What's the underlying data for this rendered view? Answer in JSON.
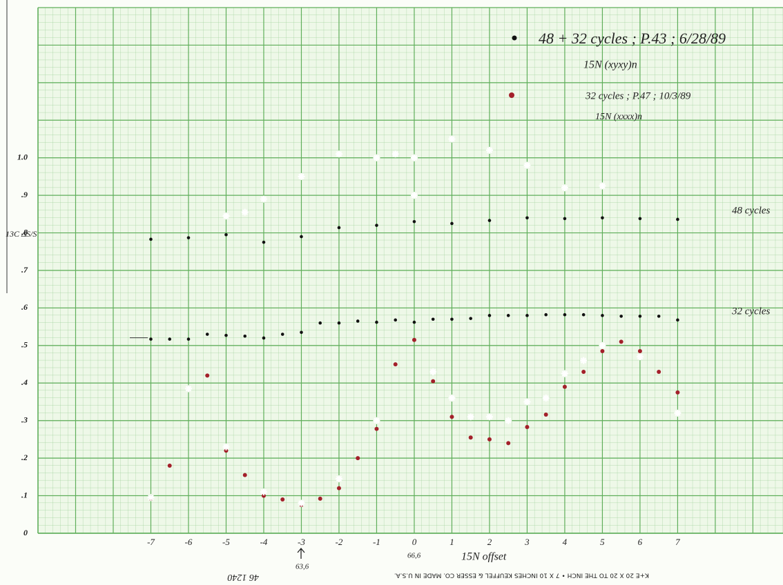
{
  "chart_data": {
    "type": "scatter",
    "y_label": "13C ΔS/S",
    "x_label": "15N offset",
    "annotations": [
      "48 + 32 cycles ; P.43 ; 6/28/89",
      "15N (xyxy)n",
      "32 cycles ; P.47 ; 10/3/89",
      "15N (xxxx)n",
      "66,6",
      "63,6",
      "46 1240",
      "K+E 20 X 20 TO THE INCH • 7 X 10 INCHES   KEUFFEL & ESSER CO.   MADE IN U.S.A."
    ],
    "xlim": [
      -10,
      9.8
    ],
    "ylim": [
      0,
      1.4
    ],
    "xticks": [
      -7,
      -6,
      -5,
      -4,
      -3,
      -2,
      -1,
      0,
      1,
      2,
      3,
      4,
      5,
      6,
      7
    ],
    "yticks": [
      0,
      {
        "value": 0.1,
        "label": ".1"
      },
      {
        "value": 0.2,
        "label": ".2"
      },
      {
        "value": 0.3,
        "label": ".3"
      },
      {
        "value": 0.4,
        "label": ".4"
      },
      {
        "value": 0.5,
        "label": ".5"
      },
      {
        "value": 0.6,
        "label": ".6"
      },
      {
        "value": 0.7,
        "label": ".7"
      },
      {
        "value": 0.8,
        "label": ".8"
      },
      {
        "value": 0.9,
        "label": ".9"
      },
      {
        "value": 1.0,
        "label": "1.0"
      }
    ],
    "grid": true,
    "series": [
      {
        "name": "48 cycles",
        "color": "#111111",
        "marker": "dot",
        "x": [
          -7,
          -6,
          -5,
          -4,
          -3,
          -2,
          -1,
          0,
          1,
          2,
          3,
          4,
          5,
          6,
          7
        ],
        "values": [
          0.783,
          0.787,
          0.795,
          0.775,
          0.79,
          0.814,
          0.82,
          0.83,
          0.825,
          0.833,
          0.84,
          0.838,
          0.84,
          0.838,
          0.836
        ]
      },
      {
        "name": "32 cycles",
        "color": "#111111",
        "marker": "dot",
        "x": [
          -7,
          -6.5,
          -6,
          -5.5,
          -5,
          -4.5,
          -4,
          -3.5,
          -3,
          -2.5,
          -2,
          -1.5,
          -1,
          -0.5,
          0,
          0.5,
          1,
          1.5,
          2,
          2.5,
          3,
          3.5,
          4,
          4.5,
          5,
          5.5,
          6,
          6.5,
          7
        ],
        "values": [
          0.517,
          0.517,
          0.517,
          0.53,
          0.527,
          0.525,
          0.52,
          0.53,
          0.535,
          0.56,
          0.56,
          0.565,
          0.562,
          0.568,
          0.562,
          0.57,
          0.57,
          0.572,
          0.58,
          0.58,
          0.58,
          0.582,
          0.582,
          0.582,
          0.58,
          0.578,
          0.578,
          0.578,
          0.568
        ]
      },
      {
        "color": "#a3202a",
        "marker": "dot",
        "x": [
          -7,
          -6.5,
          -6,
          -5.5,
          -5,
          -4.5,
          -4,
          -3.5,
          -3,
          -2.5,
          -2,
          -1.5,
          -1,
          -0.5,
          0,
          0.5,
          1,
          1.5,
          2,
          2.5,
          3,
          3.5,
          4,
          4.5,
          5,
          5.5,
          6,
          6.5,
          7
        ],
        "values": [
          0.092,
          0.18,
          0.385,
          0.42,
          0.22,
          0.155,
          0.1,
          0.09,
          0.075,
          0.092,
          0.12,
          0.2,
          0.278,
          0.45,
          0.515,
          0.405,
          0.31,
          0.255,
          0.25,
          0.24,
          0.283,
          0.316,
          0.39,
          0.43,
          0.485,
          0.51,
          0.485,
          0.43,
          0.375
        ]
      },
      {
        "color": "#ffffff",
        "marker": "cross",
        "x": [
          -5,
          -4.5,
          -4,
          -3,
          -2,
          -1,
          -0.5,
          0,
          0,
          1,
          2,
          3,
          4,
          5,
          -7,
          -6,
          -5,
          -4,
          -3,
          -2,
          -1,
          0.5,
          1,
          1.5,
          2,
          2.5,
          3,
          3.5,
          4,
          4.5,
          5,
          6,
          7
        ],
        "values": [
          0.845,
          0.855,
          0.89,
          0.95,
          1.01,
          1.0,
          1.01,
          1.0,
          0.9,
          1.05,
          1.02,
          0.98,
          0.92,
          0.925,
          0.095,
          0.385,
          0.23,
          0.11,
          0.08,
          0.145,
          0.3,
          0.43,
          0.36,
          0.31,
          0.31,
          0.3,
          0.35,
          0.36,
          0.425,
          0.46,
          0.5,
          0.47,
          0.32
        ]
      }
    ]
  }
}
